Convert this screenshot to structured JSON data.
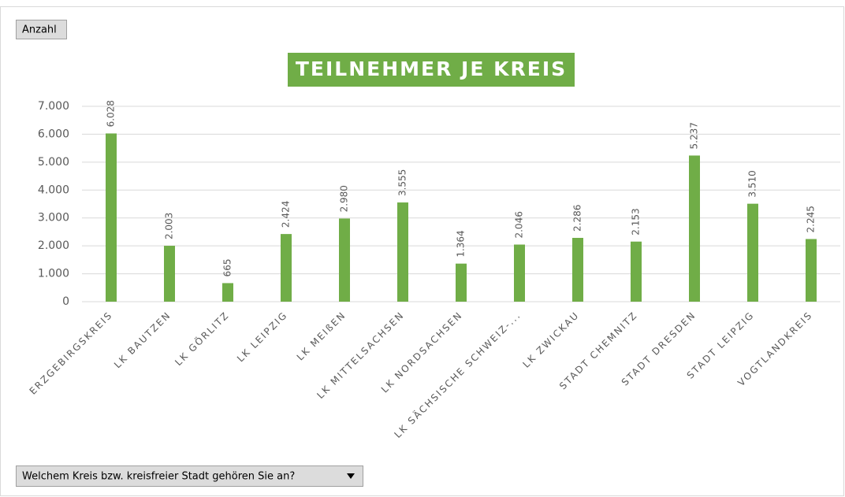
{
  "value_field_button": "Anzahl",
  "axis_field_button": "Welchem Kreis bzw. kreisfreier Stadt gehören Sie an?",
  "chart_data": {
    "type": "bar",
    "title": "TEILNEHMER JE KREIS",
    "categories": [
      "ERZGEBIRGSKREIS",
      "LK BAUTZEN",
      "LK GÖRLITZ",
      "LK LEIPZIG",
      "LK MEIßEN",
      "LK MITTELSACHSEN",
      "LK NORDSACHSEN",
      "LK SÄCHSISCHE SCHWEIZ-...",
      "LK ZWICKAU",
      "STADT CHEMNITZ",
      "STADT DRESDEN",
      "STADT LEIPZIG",
      "VOGTLANDKREIS"
    ],
    "values": [
      6028,
      2003,
      665,
      2424,
      2980,
      3555,
      1364,
      2046,
      2286,
      2153,
      5237,
      3510,
      2245
    ],
    "value_labels": [
      "6.028",
      "2.003",
      "665",
      "2.424",
      "2.980",
      "3.555",
      "1.364",
      "2.046",
      "2.286",
      "2.153",
      "5.237",
      "3.510",
      "2.245"
    ],
    "color": "#70ad47",
    "ylim": [
      0,
      7000
    ],
    "yticks": [
      0,
      {
        "value": 1000,
        "label": "1.000"
      },
      {
        "value": 2000,
        "label": "2.000"
      },
      {
        "value": 3000,
        "label": "3.000"
      },
      {
        "value": 4000,
        "label": "4.000"
      },
      {
        "value": 5000,
        "label": "5.000"
      },
      {
        "value": 6000,
        "label": "6.000"
      },
      {
        "value": 7000,
        "label": "7.000"
      }
    ],
    "grid": true
  }
}
